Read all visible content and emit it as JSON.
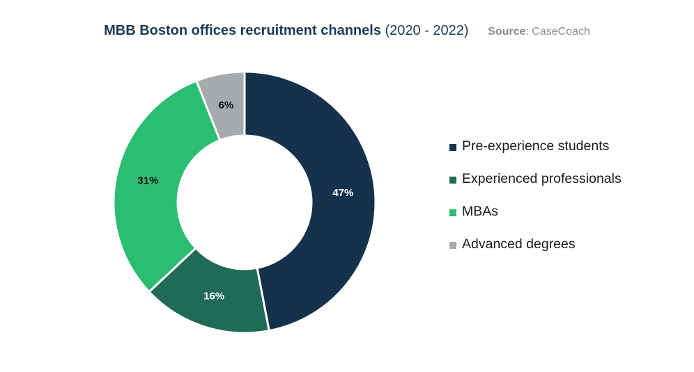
{
  "title": {
    "main": "MBB Boston offices recruitment channels",
    "years": "(2020 - 2022)",
    "source_label": "Source",
    "source_value": ": CaseCoach"
  },
  "colors": {
    "pre_experience": "#15324d",
    "experienced": "#1f6b58",
    "mbas": "#2bbd72",
    "advanced": "#a6aaad"
  },
  "chart_data": {
    "type": "donut",
    "title": "MBB Boston offices recruitment channels (2020 - 2022)",
    "source": "CaseCoach",
    "legend_position": "right",
    "slices": [
      {
        "name": "Pre-experience students",
        "value": 47,
        "label": "47%",
        "color": "#15324d",
        "label_color": "#ffffff"
      },
      {
        "name": "Experienced professionals",
        "value": 16,
        "label": "16%",
        "color": "#1f6b58",
        "label_color": "#ffffff"
      },
      {
        "name": "MBAs",
        "value": 31,
        "label": "31%",
        "color": "#2bbd72",
        "label_color": "#111111"
      },
      {
        "name": "Advanced degrees",
        "value": 6,
        "label": "6%",
        "color": "#a6aaad",
        "label_color": "#111111"
      }
    ]
  }
}
